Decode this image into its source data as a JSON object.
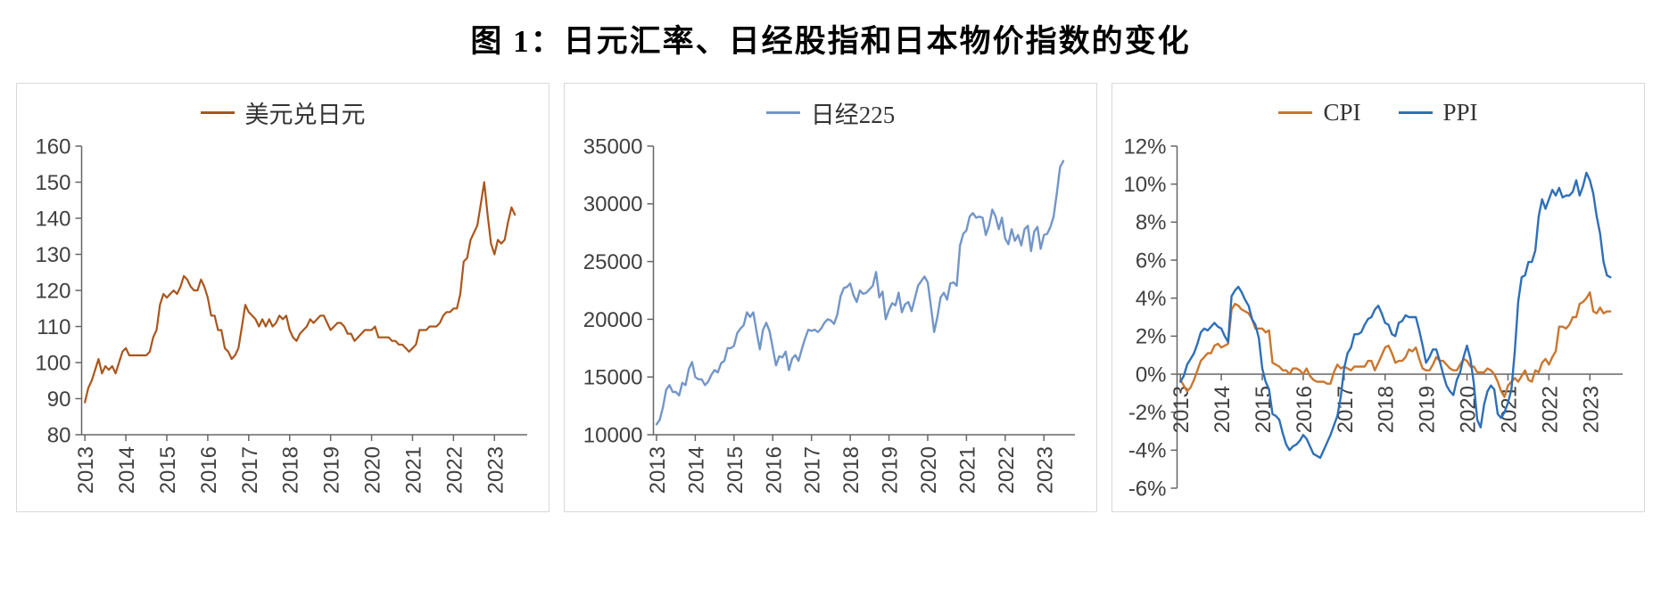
{
  "title": "图 1：日元汇率、日经股指和日本物价指数的变化",
  "colors": {
    "background": "#ffffff",
    "panel_border": "#d8d8d8",
    "axis_line": "#666666",
    "tick_label": "#404040",
    "usd_jpy_line": "#A9561D",
    "nikkei_line": "#7396C8",
    "cpi_line": "#C9772F",
    "ppi_line": "#2E6FB7"
  },
  "chart_data": [
    {
      "type": "line",
      "name": "usd-jpy-exchange-rate",
      "title": "",
      "xlabel": "",
      "ylabel": "",
      "grid": false,
      "legend_position": "top-center",
      "x_start": 2013,
      "points_per_year": 12,
      "xlim": [
        2012.92,
        2023.8
      ],
      "ylim": [
        80,
        160
      ],
      "x_axis_at": "bottom",
      "x_tick_labels": [
        "2013",
        "2014",
        "2015",
        "2016",
        "2017",
        "2018",
        "2019",
        "2020",
        "2021",
        "2022",
        "2023"
      ],
      "y_tick_values": [
        80,
        90,
        100,
        110,
        120,
        130,
        140,
        150,
        160
      ],
      "y_tick_labels": [
        "80",
        "90",
        "100",
        "110",
        "120",
        "130",
        "140",
        "150",
        "160"
      ],
      "series": [
        {
          "name": "美元兑日元",
          "color": "#A9561D",
          "width": 2.2,
          "values": [
            89,
            93,
            95,
            98,
            101,
            97,
            99,
            98,
            99,
            97,
            100,
            103,
            104,
            102,
            102,
            102,
            102,
            102,
            102,
            103,
            107,
            109,
            116,
            119,
            118,
            119,
            120,
            119,
            121,
            124,
            123,
            121,
            120,
            120,
            123,
            121,
            118,
            113,
            113,
            109,
            109,
            104,
            103,
            101,
            102,
            104,
            110,
            116,
            114,
            113,
            112,
            110,
            112,
            110,
            112,
            110,
            111,
            113,
            112,
            113,
            109,
            107,
            106,
            108,
            109,
            110,
            112,
            111,
            112,
            113,
            113,
            111,
            109,
            110,
            111,
            111,
            110,
            108,
            108,
            106,
            107,
            108,
            109,
            109,
            109,
            110,
            107,
            107,
            107,
            107,
            106,
            106,
            105,
            105,
            104,
            103,
            104,
            105,
            109,
            109,
            109,
            110,
            110,
            110,
            111,
            113,
            114,
            114,
            115,
            115,
            119,
            128,
            129,
            134,
            136,
            138,
            144,
            150,
            141,
            133,
            130,
            134,
            133,
            134,
            139,
            143,
            141
          ]
        }
      ]
    },
    {
      "type": "line",
      "name": "nikkei-225",
      "title": "",
      "xlabel": "",
      "ylabel": "",
      "grid": false,
      "legend_position": "top-center",
      "x_start": 2013,
      "points_per_year": 12,
      "xlim": [
        2012.92,
        2023.8
      ],
      "ylim": [
        10000,
        35000
      ],
      "x_axis_at": "bottom",
      "x_tick_labels": [
        "2013",
        "2014",
        "2015",
        "2016",
        "2017",
        "2018",
        "2019",
        "2020",
        "2021",
        "2022",
        "2023"
      ],
      "y_tick_values": [
        10000,
        15000,
        20000,
        25000,
        30000,
        35000
      ],
      "y_tick_labels": [
        "10000",
        "15000",
        "20000",
        "25000",
        "30000",
        "35000"
      ],
      "series": [
        {
          "name": "日经225",
          "color": "#7396C8",
          "width": 2.4,
          "values": [
            10900,
            11300,
            12400,
            13900,
            14300,
            13700,
            13700,
            13400,
            14500,
            14300,
            15700,
            16300,
            15000,
            14800,
            14800,
            14300,
            14600,
            15200,
            15600,
            15400,
            16200,
            16400,
            17500,
            17500,
            17700,
            18800,
            19200,
            19500,
            20600,
            20200,
            20600,
            18900,
            17400,
            19100,
            19700,
            19000,
            17500,
            16000,
            16800,
            16700,
            17200,
            15600,
            16600,
            16900,
            16400,
            17400,
            18300,
            19100,
            19000,
            19100,
            18900,
            19200,
            19700,
            20000,
            19900,
            19600,
            20400,
            22000,
            22700,
            22800,
            23100,
            22100,
            21500,
            22500,
            22200,
            22300,
            22600,
            22900,
            24100,
            21900,
            22400,
            20000,
            20800,
            21400,
            21200,
            22300,
            20600,
            21300,
            21500,
            20700,
            21800,
            22900,
            23300,
            23700,
            23200,
            21100,
            18900,
            20200,
            21900,
            22300,
            21700,
            23100,
            23200,
            22900,
            26400,
            27400,
            27700,
            28900,
            29200,
            28800,
            28900,
            28800,
            27300,
            28100,
            29500,
            28900,
            27800,
            28800,
            27000,
            26500,
            27800,
            26800,
            27300,
            26400,
            27800,
            28100,
            25900,
            27600,
            28000,
            26100,
            27300,
            27400,
            28000,
            28900,
            30900,
            33200,
            33700
          ]
        }
      ]
    },
    {
      "type": "line",
      "name": "japan-cpi-ppi",
      "title": "",
      "xlabel": "",
      "ylabel": "",
      "grid": false,
      "legend_position": "top-center",
      "x_start": 2013,
      "points_per_year": 12,
      "xlim": [
        2012.92,
        2023.8
      ],
      "ylim": [
        -6,
        12
      ],
      "x_axis_at": "zero",
      "x_tick_labels": [
        "2013",
        "2014",
        "2015",
        "2016",
        "2017",
        "2018",
        "2019",
        "2020",
        "2021",
        "2022",
        "2023"
      ],
      "y_tick_values": [
        -6,
        -4,
        -2,
        0,
        2,
        4,
        6,
        8,
        10,
        12
      ],
      "y_tick_labels": [
        "-6%",
        "-4%",
        "-2%",
        "0%",
        "2%",
        "4%",
        "6%",
        "8%",
        "10%",
        "12%"
      ],
      "series": [
        {
          "name": "CPI",
          "color": "#C9772F",
          "width": 2.4,
          "values": [
            -0.3,
            -0.6,
            -0.9,
            -0.7,
            -0.3,
            0.2,
            0.7,
            0.9,
            1.1,
            1.1,
            1.5,
            1.6,
            1.4,
            1.5,
            1.6,
            3.4,
            3.7,
            3.6,
            3.4,
            3.3,
            3.2,
            2.9,
            2.4,
            2.4,
            2.4,
            2.2,
            2.3,
            0.6,
            0.5,
            0.4,
            0.2,
            0.2,
            0.0,
            0.3,
            0.3,
            0.2,
            0.0,
            0.3,
            -0.1,
            -0.3,
            -0.4,
            -0.4,
            -0.4,
            -0.5,
            -0.5,
            0.1,
            0.5,
            0.3,
            0.4,
            0.3,
            0.2,
            0.4,
            0.4,
            0.4,
            0.4,
            0.7,
            0.7,
            0.2,
            0.6,
            1.0,
            1.4,
            1.5,
            1.1,
            0.6,
            0.7,
            0.7,
            0.9,
            1.3,
            1.2,
            1.4,
            0.8,
            0.3,
            0.2,
            0.2,
            0.5,
            0.9,
            0.7,
            0.7,
            0.5,
            0.3,
            0.2,
            0.2,
            0.5,
            0.8,
            0.7,
            0.4,
            0.4,
            0.1,
            0.1,
            0.1,
            0.3,
            0.2,
            0.0,
            -0.4,
            -0.9,
            -1.2,
            -0.6,
            -0.4,
            -0.2,
            -0.4,
            -0.1,
            0.2,
            -0.3,
            -0.4,
            0.2,
            0.1,
            0.6,
            0.8,
            0.5,
            0.9,
            1.2,
            2.5,
            2.5,
            2.4,
            2.6,
            3.0,
            3.0,
            3.7,
            3.8,
            4.0,
            4.3,
            3.3,
            3.2,
            3.5,
            3.2,
            3.3,
            3.3
          ]
        },
        {
          "name": "PPI",
          "color": "#2E6FB7",
          "width": 2.4,
          "values": [
            -0.4,
            -0.1,
            0.5,
            0.8,
            1.1,
            1.6,
            2.2,
            2.4,
            2.3,
            2.5,
            2.7,
            2.5,
            2.4,
            2.0,
            1.7,
            4.1,
            4.4,
            4.6,
            4.3,
            3.9,
            3.6,
            2.9,
            2.6,
            1.9,
            0.3,
            -0.4,
            -0.8,
            -2.1,
            -2.2,
            -2.4,
            -3.1,
            -3.7,
            -4.0,
            -3.8,
            -3.7,
            -3.5,
            -3.2,
            -3.4,
            -3.8,
            -4.2,
            -4.3,
            -4.4,
            -4.0,
            -3.6,
            -3.2,
            -2.7,
            -2.2,
            -1.2,
            0.3,
            1.1,
            1.4,
            2.1,
            2.1,
            2.2,
            2.6,
            2.9,
            3.0,
            3.4,
            3.6,
            3.2,
            2.7,
            2.6,
            2.1,
            2.0,
            2.7,
            2.8,
            3.1,
            3.0,
            3.0,
            3.0,
            2.3,
            1.5,
            0.6,
            0.9,
            1.3,
            1.3,
            0.7,
            0.0,
            -0.6,
            -0.9,
            -1.1,
            -0.3,
            0.1,
            0.9,
            1.5,
            0.8,
            -0.5,
            -2.4,
            -2.8,
            -1.6,
            -0.9,
            -0.6,
            -0.8,
            -2.1,
            -2.3,
            -2.0,
            -1.5,
            -0.8,
            1.2,
            3.8,
            5.1,
            5.2,
            5.9,
            5.9,
            6.5,
            8.3,
            9.2,
            8.7,
            9.2,
            9.7,
            9.4,
            9.8,
            9.3,
            9.4,
            9.4,
            9.6,
            10.2,
            9.4,
            9.9,
            10.6,
            10.2,
            9.5,
            8.3,
            7.4,
            5.9,
            5.2,
            5.1
          ]
        }
      ]
    }
  ]
}
